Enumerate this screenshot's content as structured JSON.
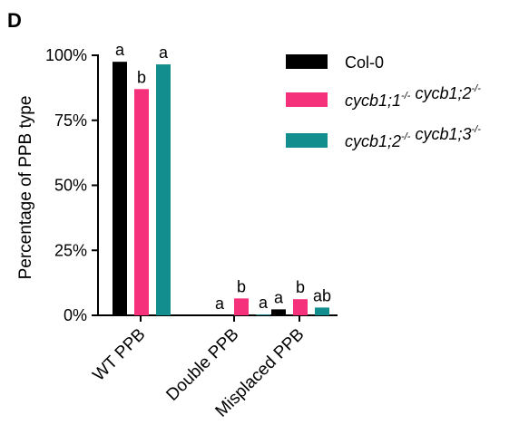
{
  "panel_label": "D",
  "colors": {
    "Col-0": "#000000",
    "cycb1_1_cycb1_2": "#f5317c",
    "cycb1_2_cycb1_3": "#138e8e"
  },
  "chart_data": {
    "type": "bar",
    "title": "",
    "xlabel": "",
    "ylabel": "Percentage of PPB type",
    "ylim": [
      0,
      100
    ],
    "yticks": [
      "0%",
      "25%",
      "50%",
      "75%",
      "100%"
    ],
    "ytick_values": [
      0,
      25,
      50,
      75,
      100
    ],
    "categories": [
      "WT PPB",
      "Double PPB",
      "Misplaced PPB"
    ],
    "legend_position": "top-right",
    "series": [
      {
        "name": "Col-0",
        "color": "#000000",
        "values": [
          97.5,
          0,
          2.3
        ],
        "significance": [
          "a",
          "a",
          "a"
        ]
      },
      {
        "name": "cycb1;1-/- cycb1;2-/-",
        "name_parts": [
          {
            "t": "cycb1;1"
          },
          {
            "t": "-/-",
            "sup": true
          },
          {
            "t": " cycb1;2"
          },
          {
            "t": "-/-",
            "sup": true
          }
        ],
        "color": "#f5317c",
        "values": [
          87,
          6.5,
          6.2
        ],
        "significance": [
          "b",
          "b",
          "b"
        ]
      },
      {
        "name": "cycb1;2-/- cycb1;3-/-",
        "name_parts": [
          {
            "t": "cycb1;2"
          },
          {
            "t": "-/-",
            "sup": true
          },
          {
            "t": " cycb1;3"
          },
          {
            "t": "-/-",
            "sup": true
          }
        ],
        "color": "#138e8e",
        "values": [
          96.5,
          0.3,
          3
        ],
        "significance": [
          "a",
          "a",
          "ab"
        ]
      }
    ]
  }
}
